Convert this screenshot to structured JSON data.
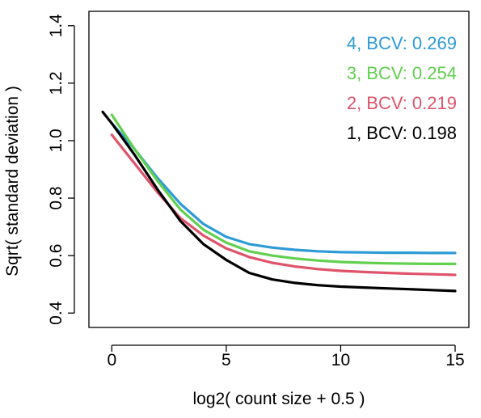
{
  "chart_data": {
    "type": "line",
    "title": "",
    "xlabel": "log2( count size + 0.5 )",
    "ylabel": "Sqrt( standard deviation )",
    "xlim": [
      -1,
      15.6
    ],
    "ylim": [
      0.35,
      1.45
    ],
    "xticks": [
      0,
      5,
      10,
      15
    ],
    "xtick_labels": [
      "0",
      "5",
      "10",
      "15"
    ],
    "yticks": [
      0.4,
      0.6,
      0.8,
      1.0,
      1.2,
      1.4
    ],
    "ytick_labels": [
      "0.4",
      "0.6",
      "0.8",
      "1.0",
      "1.2",
      "1.4"
    ],
    "grid": false,
    "legend_position": "top-right",
    "series": [
      {
        "name": "4, BCV: 0.269",
        "color": "#2e9bd6",
        "x": [
          0,
          1,
          2,
          3,
          4,
          5,
          6,
          7,
          8,
          9,
          10,
          11,
          12,
          13,
          14,
          15
        ],
        "y": [
          1.06,
          0.97,
          0.87,
          0.78,
          0.71,
          0.665,
          0.64,
          0.628,
          0.62,
          0.615,
          0.612,
          0.611,
          0.61,
          0.61,
          0.609,
          0.609
        ]
      },
      {
        "name": "3, BCV: 0.254",
        "color": "#61d04f",
        "x": [
          0,
          1,
          2,
          3,
          4,
          5,
          6,
          7,
          8,
          9,
          10,
          11,
          12,
          13,
          14,
          15
        ],
        "y": [
          1.09,
          0.97,
          0.86,
          0.76,
          0.69,
          0.645,
          0.615,
          0.6,
          0.59,
          0.583,
          0.578,
          0.575,
          0.573,
          0.572,
          0.571,
          0.571
        ]
      },
      {
        "name": "2, BCV: 0.219",
        "color": "#df536b",
        "x": [
          0,
          1,
          2,
          3,
          4,
          5,
          6,
          7,
          8,
          9,
          10,
          11,
          12,
          13,
          14,
          15
        ],
        "y": [
          1.02,
          0.92,
          0.82,
          0.73,
          0.67,
          0.625,
          0.595,
          0.575,
          0.562,
          0.553,
          0.547,
          0.543,
          0.54,
          0.537,
          0.535,
          0.533
        ]
      },
      {
        "name": "1, BCV: 0.198",
        "color": "#000000",
        "x": [
          -0.4,
          0,
          1,
          2,
          3,
          4,
          5,
          6,
          7,
          8,
          9,
          10,
          11,
          12,
          13,
          14,
          15
        ],
        "y": [
          1.1,
          1.06,
          0.95,
          0.83,
          0.72,
          0.64,
          0.585,
          0.54,
          0.517,
          0.505,
          0.497,
          0.492,
          0.489,
          0.486,
          0.483,
          0.48,
          0.477
        ]
      }
    ]
  }
}
